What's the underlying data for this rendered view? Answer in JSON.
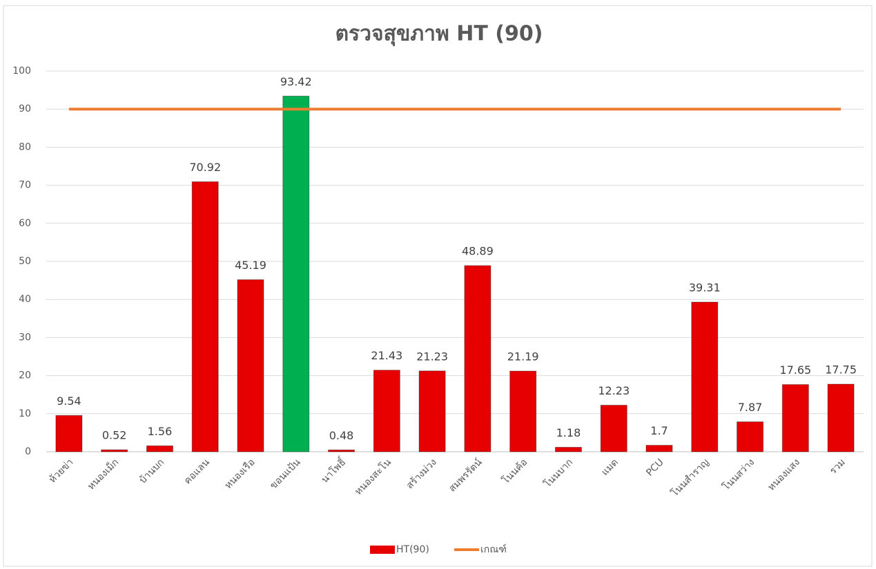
{
  "chart_data": {
    "type": "bar",
    "title": "ตรวจสุขภาพ HT (90)",
    "categories": [
      "ห้วยข่า",
      "หนองเม็ก",
      "บ้านบก",
      "คอแลน",
      "หนองเรือ",
      "ขอนแป้น",
      "นาโพธิ์",
      "หนองสะโน",
      "สร้างม่วง",
      "สมพรรัตน์",
      "โนนค้อ",
      "โนนบาก",
      "แมด",
      "PCU",
      "โนนสำราญ",
      "โนนสว่าง",
      "หนองแสง",
      "รวม"
    ],
    "series": [
      {
        "name": "HT(90)",
        "type": "bar",
        "color": "#e60000",
        "point_colors": [
          "#e60000",
          "#e60000",
          "#e60000",
          "#e60000",
          "#e60000",
          "#00b050",
          "#e60000",
          "#e60000",
          "#e60000",
          "#e60000",
          "#e60000",
          "#e60000",
          "#e60000",
          "#e60000",
          "#e60000",
          "#e60000",
          "#e60000",
          "#e60000"
        ],
        "values": [
          9.54,
          0.52,
          1.56,
          70.92,
          45.19,
          93.42,
          0.48,
          21.43,
          21.23,
          48.89,
          21.19,
          1.18,
          12.23,
          1.7,
          39.31,
          7.87,
          17.65,
          17.75
        ]
      },
      {
        "name": "เกณฑ์",
        "type": "line",
        "color": "#ed7d31",
        "values": [
          90,
          90,
          90,
          90,
          90,
          90,
          90,
          90,
          90,
          90,
          90,
          90,
          90,
          90,
          90,
          90,
          90,
          90
        ]
      }
    ],
    "ylim": [
      0,
      100
    ],
    "yticks": [
      0,
      10,
      20,
      30,
      40,
      50,
      60,
      70,
      80,
      90,
      100
    ],
    "grid": true,
    "legend": "bottom"
  }
}
